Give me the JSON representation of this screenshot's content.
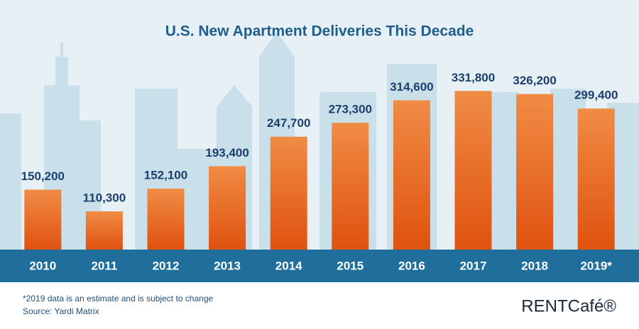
{
  "chart_data": {
    "type": "bar",
    "title": "U.S. New Apartment Deliveries This Decade",
    "categories": [
      "2010",
      "2011",
      "2012",
      "2013",
      "2014",
      "2015",
      "2016",
      "2017",
      "2018",
      "2019*"
    ],
    "values": [
      150200,
      110300,
      152100,
      193400,
      247700,
      273300,
      314600,
      331800,
      326200,
      299400
    ],
    "value_labels": [
      "150,200",
      "110,300",
      "152,100",
      "193,400",
      "247,700",
      "273,300",
      "314,600",
      "331,800",
      "326,200",
      "299,400"
    ],
    "color": "#ea6a22",
    "ylim": [
      40000,
      340000
    ],
    "notes": [
      "*2019 data is an estimate and is subject to change",
      "Source: Yardi Matrix"
    ],
    "logo": "RENTCafé®"
  }
}
